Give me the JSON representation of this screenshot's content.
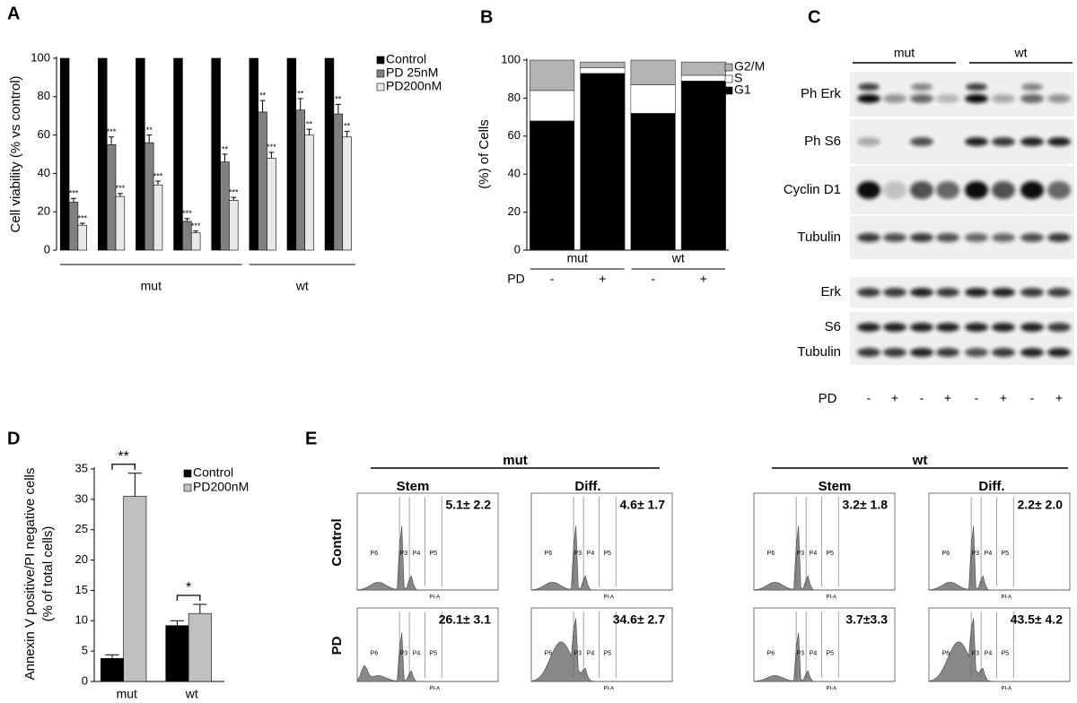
{
  "chart_data": [
    {
      "type": "grouped_bar",
      "panel": "A",
      "y_label": "Cell viability (% vs control)",
      "categories": [
        null,
        null,
        null,
        null,
        null,
        null,
        null,
        null
      ],
      "groups": [
        "mut",
        "wt"
      ],
      "series": [
        {
          "name": "Control",
          "color": "#000000",
          "values": [
            100,
            100,
            100,
            100,
            100,
            100,
            100,
            100
          ]
        },
        {
          "name": "PD 25nM",
          "color": "#808080",
          "values": [
            25,
            55,
            56,
            15,
            46,
            72,
            73,
            71
          ],
          "errors": [
            2,
            4,
            4,
            1.5,
            4,
            6,
            6,
            5
          ],
          "stars": [
            "***",
            "***",
            "**",
            "***",
            "**",
            "**",
            "**",
            "**"
          ]
        },
        {
          "name": "PD200nM",
          "color": "#e8e8e8",
          "values": [
            13,
            28,
            34,
            9,
            26,
            48,
            60,
            59
          ],
          "errors": [
            1,
            1.5,
            2,
            1,
            1.5,
            3,
            3,
            3
          ],
          "stars": [
            "***",
            "***",
            "***",
            "***",
            "***",
            "***",
            "**",
            "**"
          ]
        }
      ],
      "ylim": [
        0,
        100
      ],
      "yticks": [
        0,
        20,
        40,
        60,
        80,
        100
      ],
      "legend": "right"
    },
    {
      "type": "stacked_bar",
      "panel": "B",
      "y_label": "(%) of Cells",
      "x_label": "PD",
      "categories": [
        "-",
        "+",
        "-",
        "+"
      ],
      "groups": [
        "mut",
        "wt"
      ],
      "series": [
        {
          "name": "G1",
          "color": "#000000",
          "values": [
            68,
            93,
            72,
            89
          ]
        },
        {
          "name": "S",
          "color": "#ffffff",
          "values": [
            16,
            3,
            15,
            3
          ]
        },
        {
          "name": "G2/M",
          "color": "#b3b3b3",
          "values": [
            16,
            3,
            13,
            7
          ]
        }
      ],
      "ylim": [
        0,
        100
      ],
      "yticks": [
        0,
        20,
        40,
        60,
        80,
        100
      ],
      "legend": "right"
    },
    {
      "type": "grouped_bar",
      "panel": "D",
      "y_label": [
        "Annexin V positive/PI negative cells",
        "(% of total cells)"
      ],
      "categories": [
        "mut",
        "wt"
      ],
      "annotations": [
        "**",
        "*"
      ],
      "series": [
        {
          "name": "Control",
          "color": "#000000",
          "values": [
            3.8,
            9.2
          ],
          "errors": [
            0.6,
            0.8
          ]
        },
        {
          "name": "PD200nM",
          "color": "#c0c0c0",
          "values": [
            30.5,
            11.2
          ],
          "errors": [
            3.8,
            1.5
          ]
        }
      ],
      "ylim": [
        0,
        35
      ],
      "yticks": [
        0,
        5,
        10,
        15,
        20,
        25,
        30,
        35
      ],
      "legend": "top-right"
    }
  ],
  "blot": {
    "panel": "C",
    "groups": [
      "mut",
      "wt"
    ],
    "rows": [
      "Ph Erk",
      "Ph S6",
      "Cyclin D1",
      "Tubulin",
      "Erk",
      "S6",
      "Tubulin"
    ],
    "pd_label": "PD",
    "lanes": [
      "-",
      "+",
      "-",
      "+",
      "-",
      "+",
      "-",
      "+"
    ]
  },
  "flow": {
    "panel": "E",
    "groups": [
      "mut",
      "wt"
    ],
    "columns": [
      "Stem",
      "Diff.",
      "Stem",
      "Diff."
    ],
    "rows": [
      "Control",
      "PD"
    ],
    "values": [
      [
        "5.1± 2.2",
        "4.6± 1.7",
        "3.2± 1.8",
        "2.2± 2.0"
      ],
      [
        "26.1± 3.1",
        "34.6± 2.7",
        "3.7±3.3",
        "43.5± 4.2"
      ]
    ],
    "gates": [
      "P6",
      "P3",
      "P4",
      "P5"
    ],
    "x_label": "PI-A"
  }
}
